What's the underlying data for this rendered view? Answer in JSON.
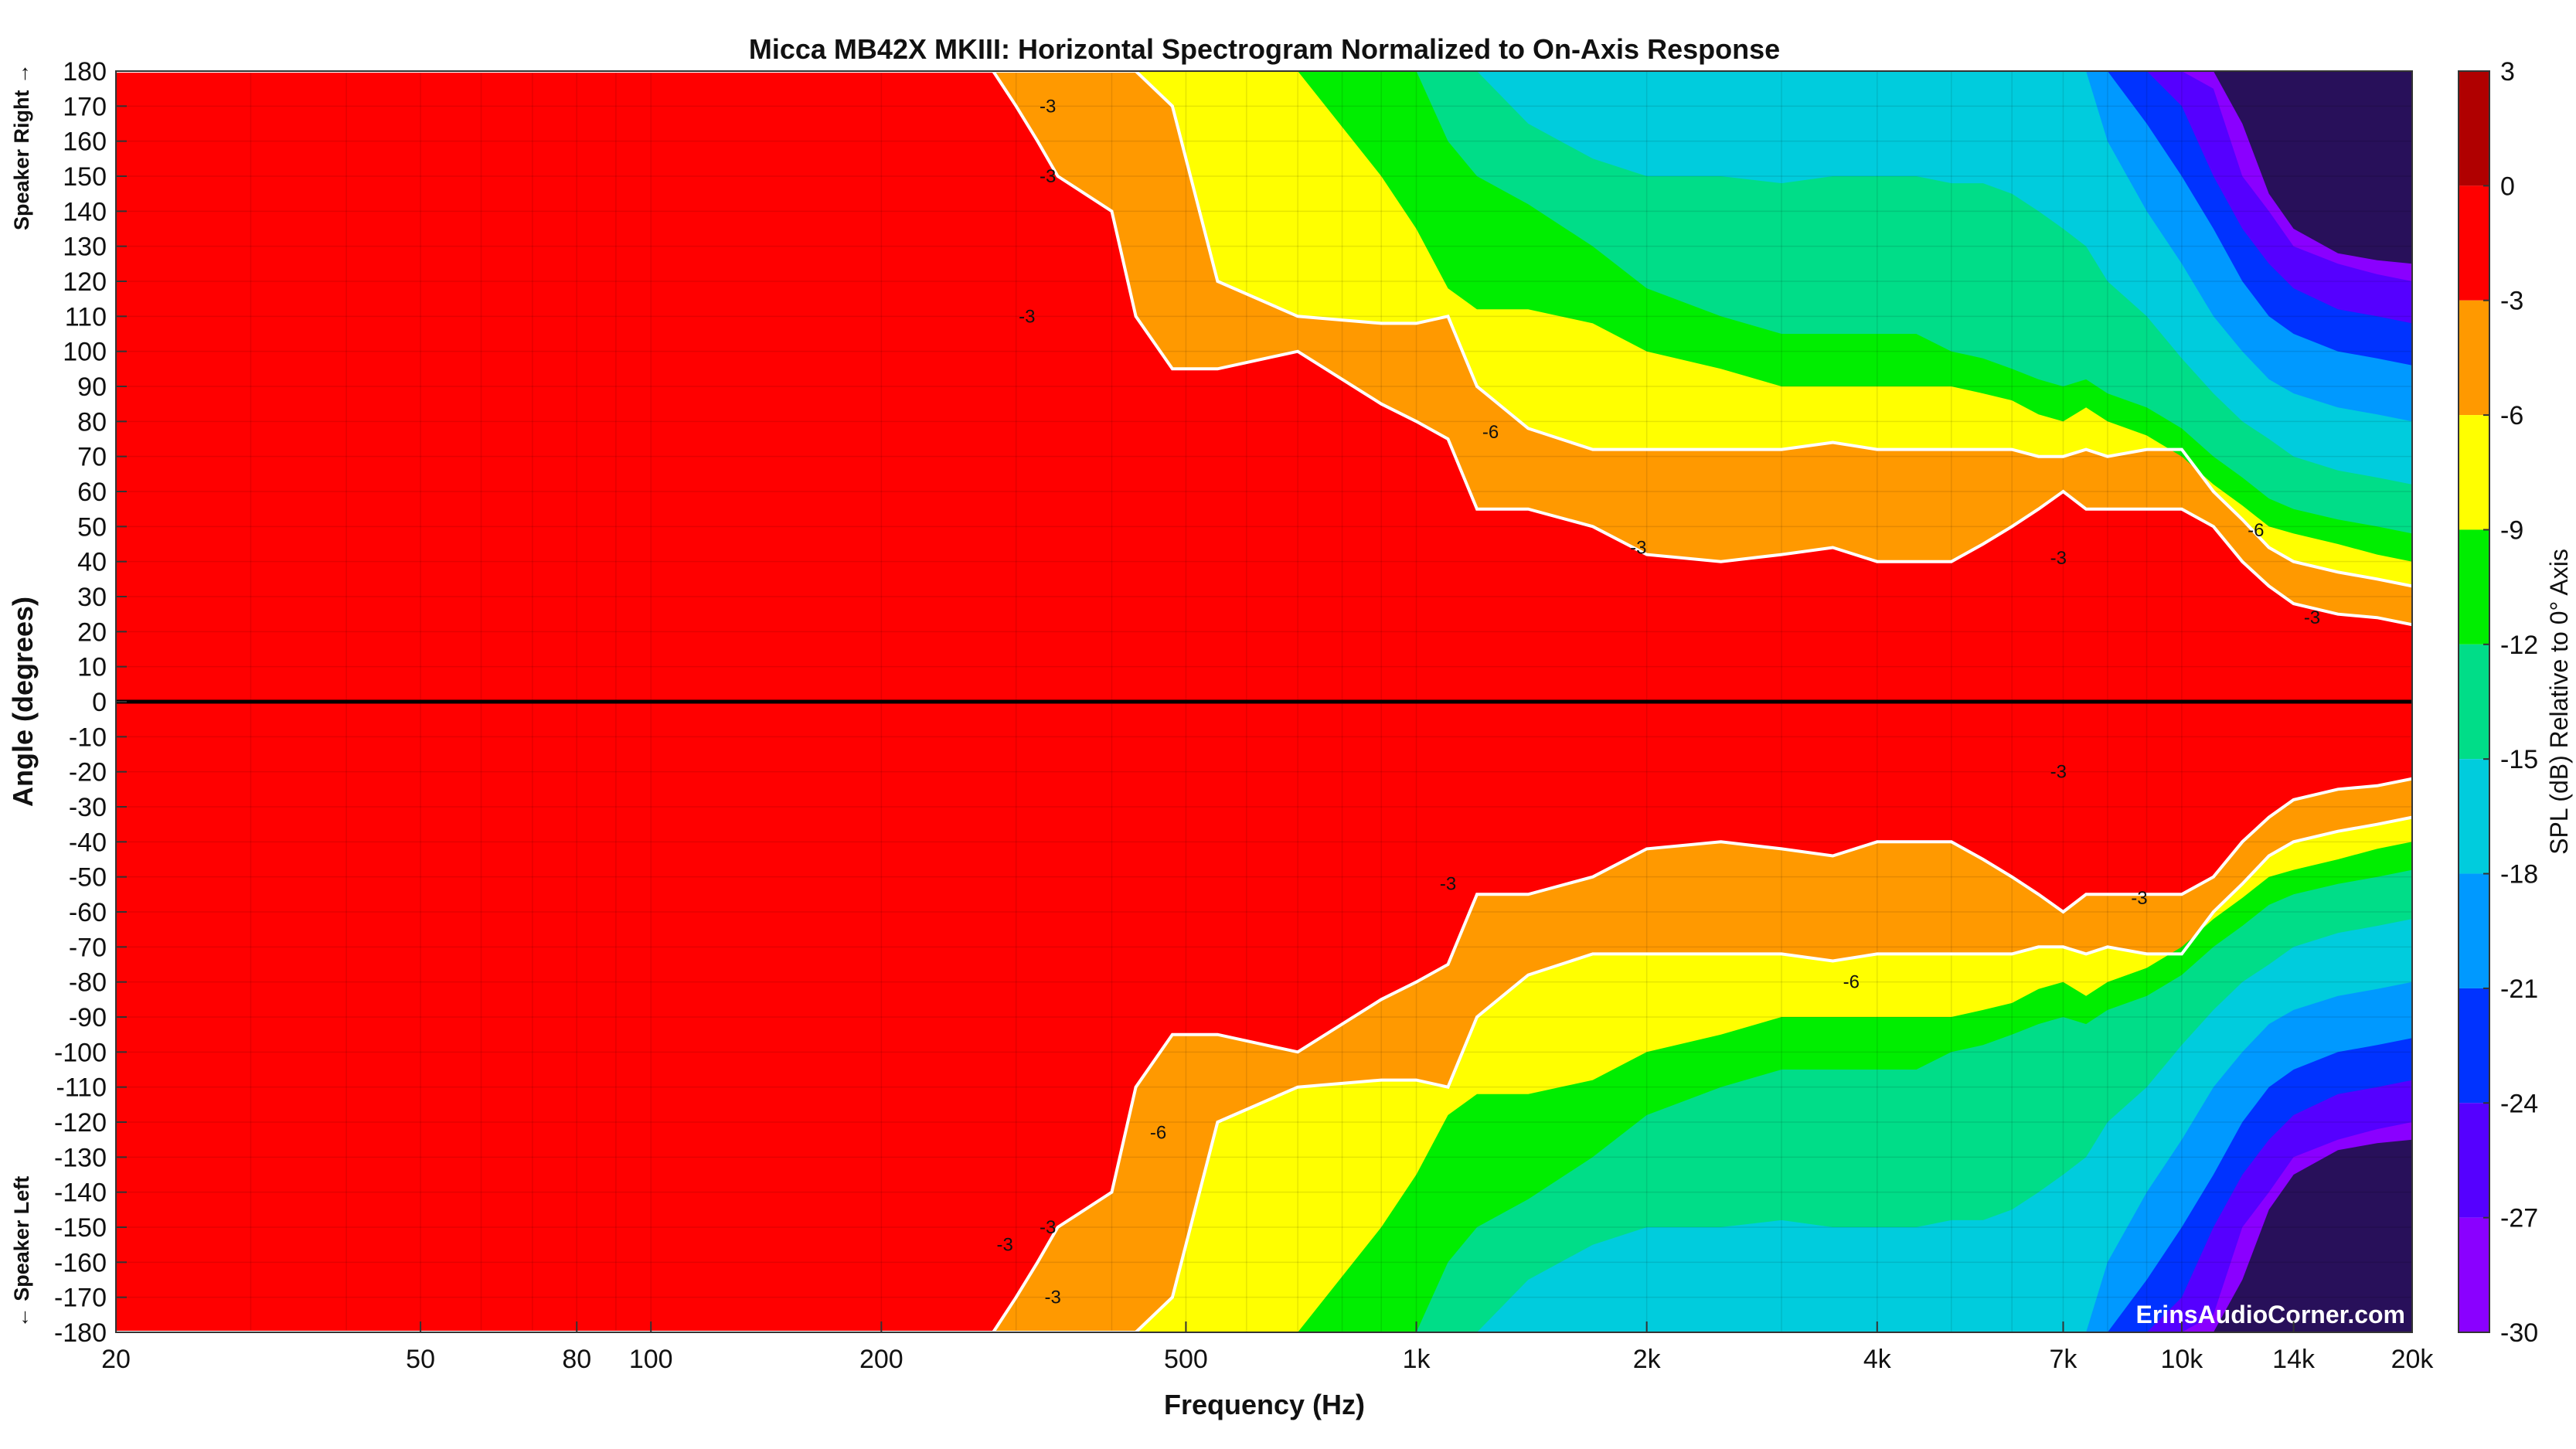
{
  "chart_data": {
    "type": "heatmap",
    "title": "Micca MB42X MKIII: Horizontal Spectrogram Normalized to On-Axis Response",
    "xlabel": "Frequency (Hz)",
    "ylabel": "Angle (degrees)",
    "x_scale": "log",
    "xlim": [
      20,
      20000
    ],
    "ylim": [
      -180,
      180
    ],
    "x_ticks": [
      {
        "value": 20,
        "label": "20"
      },
      {
        "value": 50,
        "label": "50"
      },
      {
        "value": 80,
        "label": "80"
      },
      {
        "value": 100,
        "label": "100"
      },
      {
        "value": 200,
        "label": "200"
      },
      {
        "value": 500,
        "label": "500"
      },
      {
        "value": 1000,
        "label": "1k"
      },
      {
        "value": 2000,
        "label": "2k"
      },
      {
        "value": 4000,
        "label": "4k"
      },
      {
        "value": 7000,
        "label": "7k"
      },
      {
        "value": 10000,
        "label": "10k"
      },
      {
        "value": 14000,
        "label": "14k"
      },
      {
        "value": 20000,
        "label": "20k"
      }
    ],
    "y_ticks": [
      180,
      170,
      160,
      150,
      140,
      130,
      120,
      110,
      100,
      90,
      80,
      70,
      60,
      50,
      40,
      30,
      20,
      10,
      0,
      -10,
      -20,
      -30,
      -40,
      -50,
      -60,
      -70,
      -80,
      -90,
      -100,
      -110,
      -120,
      -130,
      -140,
      -150,
      -160,
      -170,
      -180
    ],
    "side_labels": {
      "top": "Speaker Right →",
      "bottom": "← Speaker Left"
    },
    "grid": true,
    "colorbar": {
      "label": "SPL (dB) Relative to 0° Axis",
      "min": -30,
      "max": 3,
      "ticks": [
        3,
        0,
        -3,
        -6,
        -9,
        -12,
        -15,
        -18,
        -21,
        -24,
        -27,
        -30
      ],
      "bands": [
        {
          "from": 0,
          "to": 3,
          "color": "#b00000"
        },
        {
          "from": -3,
          "to": 0,
          "color": "#ff0000"
        },
        {
          "from": -6,
          "to": -3,
          "color": "#ff9900"
        },
        {
          "from": -9,
          "to": -6,
          "color": "#ffff00"
        },
        {
          "from": -12,
          "to": -9,
          "color": "#00ee00"
        },
        {
          "from": -15,
          "to": -12,
          "color": "#00dd88"
        },
        {
          "from": -18,
          "to": -15,
          "color": "#00ccdd"
        },
        {
          "from": -21,
          "to": -18,
          "color": "#0099ff"
        },
        {
          "from": -24,
          "to": -21,
          "color": "#0033ff"
        },
        {
          "from": -27,
          "to": -24,
          "color": "#5500ff"
        },
        {
          "from": -30,
          "to": -27,
          "color": "#8a00ff"
        },
        {
          "from": -33,
          "to": -30,
          "color": "#28105a"
        }
      ]
    },
    "contour_bounds": {
      "freq": [
        20,
        250,
        280,
        300,
        320,
        340,
        400,
        430,
        480,
        550,
        700,
        900,
        1000,
        1100,
        1200,
        1400,
        1700,
        2000,
        2500,
        3000,
        3500,
        4000,
        4500,
        5000,
        5500,
        6000,
        6500,
        7000,
        7500,
        8000,
        9000,
        10000,
        11000,
        12000,
        13000,
        14000,
        16000,
        18000,
        20000
      ],
      "levels": [
        {
          "level": -3,
          "angles": [
            180,
            180,
            180,
            170,
            160,
            150,
            140,
            110,
            95,
            95,
            100,
            85,
            80,
            75,
            55,
            55,
            50,
            42,
            40,
            42,
            44,
            40,
            40,
            40,
            45,
            50,
            55,
            60,
            55,
            55,
            55,
            55,
            50,
            40,
            33,
            28,
            25,
            24,
            22
          ]
        },
        {
          "level": -6,
          "angles": [
            180,
            180,
            180,
            180,
            180,
            180,
            180,
            180,
            170,
            120,
            110,
            108,
            108,
            110,
            90,
            78,
            72,
            72,
            72,
            72,
            74,
            72,
            72,
            72,
            72,
            72,
            70,
            70,
            72,
            70,
            72,
            72,
            60,
            52,
            44,
            40,
            37,
            35,
            33
          ]
        },
        {
          "level": -9,
          "angles": [
            180,
            180,
            180,
            180,
            180,
            180,
            180,
            180,
            180,
            180,
            180,
            150,
            135,
            118,
            112,
            112,
            108,
            100,
            95,
            90,
            90,
            90,
            90,
            90,
            88,
            86,
            82,
            80,
            84,
            80,
            76,
            70,
            62,
            56,
            50,
            48,
            45,
            42,
            40
          ]
        },
        {
          "level": -12,
          "angles": [
            180,
            180,
            180,
            180,
            180,
            180,
            180,
            180,
            180,
            180,
            180,
            180,
            180,
            160,
            150,
            142,
            130,
            118,
            110,
            105,
            105,
            105,
            105,
            100,
            98,
            95,
            92,
            90,
            92,
            88,
            84,
            78,
            70,
            64,
            58,
            55,
            52,
            50,
            48
          ]
        },
        {
          "level": -15,
          "angles": [
            180,
            180,
            180,
            180,
            180,
            180,
            180,
            180,
            180,
            180,
            180,
            180,
            180,
            180,
            180,
            165,
            155,
            150,
            150,
            148,
            150,
            150,
            150,
            148,
            148,
            145,
            140,
            135,
            130,
            120,
            110,
            98,
            88,
            80,
            75,
            70,
            66,
            64,
            62
          ]
        },
        {
          "level": -18,
          "angles": [
            180,
            180,
            180,
            180,
            180,
            180,
            180,
            180,
            180,
            180,
            180,
            180,
            180,
            180,
            180,
            180,
            180,
            180,
            180,
            180,
            180,
            180,
            180,
            180,
            180,
            180,
            180,
            180,
            180,
            160,
            140,
            125,
            110,
            100,
            92,
            88,
            84,
            82,
            80
          ]
        },
        {
          "level": -21,
          "angles": [
            180,
            180,
            180,
            180,
            180,
            180,
            180,
            180,
            180,
            180,
            180,
            180,
            180,
            180,
            180,
            180,
            180,
            180,
            180,
            180,
            180,
            180,
            180,
            180,
            180,
            180,
            180,
            180,
            180,
            180,
            165,
            150,
            135,
            120,
            110,
            105,
            100,
            98,
            96
          ]
        },
        {
          "level": -24,
          "angles": [
            180,
            180,
            180,
            180,
            180,
            180,
            180,
            180,
            180,
            180,
            180,
            180,
            180,
            180,
            180,
            180,
            180,
            180,
            180,
            180,
            180,
            180,
            180,
            180,
            180,
            180,
            180,
            180,
            180,
            180,
            180,
            170,
            150,
            135,
            125,
            118,
            112,
            110,
            108
          ]
        },
        {
          "level": -27,
          "angles": [
            180,
            180,
            180,
            180,
            180,
            180,
            180,
            180,
            180,
            180,
            180,
            180,
            180,
            180,
            180,
            180,
            180,
            180,
            180,
            180,
            180,
            180,
            180,
            180,
            180,
            180,
            180,
            180,
            180,
            180,
            180,
            180,
            175,
            150,
            140,
            130,
            125,
            122,
            120
          ]
        },
        {
          "level": -30,
          "angles": [
            180,
            180,
            180,
            180,
            180,
            180,
            180,
            180,
            180,
            180,
            180,
            180,
            180,
            180,
            180,
            180,
            180,
            180,
            180,
            180,
            180,
            180,
            180,
            180,
            180,
            180,
            180,
            180,
            180,
            180,
            180,
            180,
            180,
            165,
            145,
            135,
            128,
            126,
            125
          ]
        }
      ]
    },
    "contour_labels": [
      {
        "text": "-3",
        "freq": 330,
        "angle": 170
      },
      {
        "text": "-3",
        "freq": 330,
        "angle": 150
      },
      {
        "text": "-3",
        "freq": 310,
        "angle": 110
      },
      {
        "text": "-6",
        "freq": 1250,
        "angle": 77
      },
      {
        "text": "-3",
        "freq": 1950,
        "angle": 44
      },
      {
        "text": "-3",
        "freq": 6900,
        "angle": 41
      },
      {
        "text": "-6",
        "freq": 12500,
        "angle": 49
      },
      {
        "text": "-3",
        "freq": 14800,
        "angle": 24
      },
      {
        "text": "-3",
        "freq": 6900,
        "angle": -20
      },
      {
        "text": "-3",
        "freq": 1100,
        "angle": -52
      },
      {
        "text": "-3",
        "freq": 8800,
        "angle": -56
      },
      {
        "text": "-6",
        "freq": 3700,
        "angle": -80
      },
      {
        "text": "-6",
        "freq": 460,
        "angle": -123
      },
      {
        "text": "-3",
        "freq": 330,
        "angle": -150
      },
      {
        "text": "-3",
        "freq": 290,
        "angle": -155
      },
      {
        "text": "-3",
        "freq": 335,
        "angle": -170
      }
    ],
    "zero_line": {
      "angle": 0,
      "color": "#000000"
    },
    "watermark": "ErinsAudioCorner.com"
  }
}
